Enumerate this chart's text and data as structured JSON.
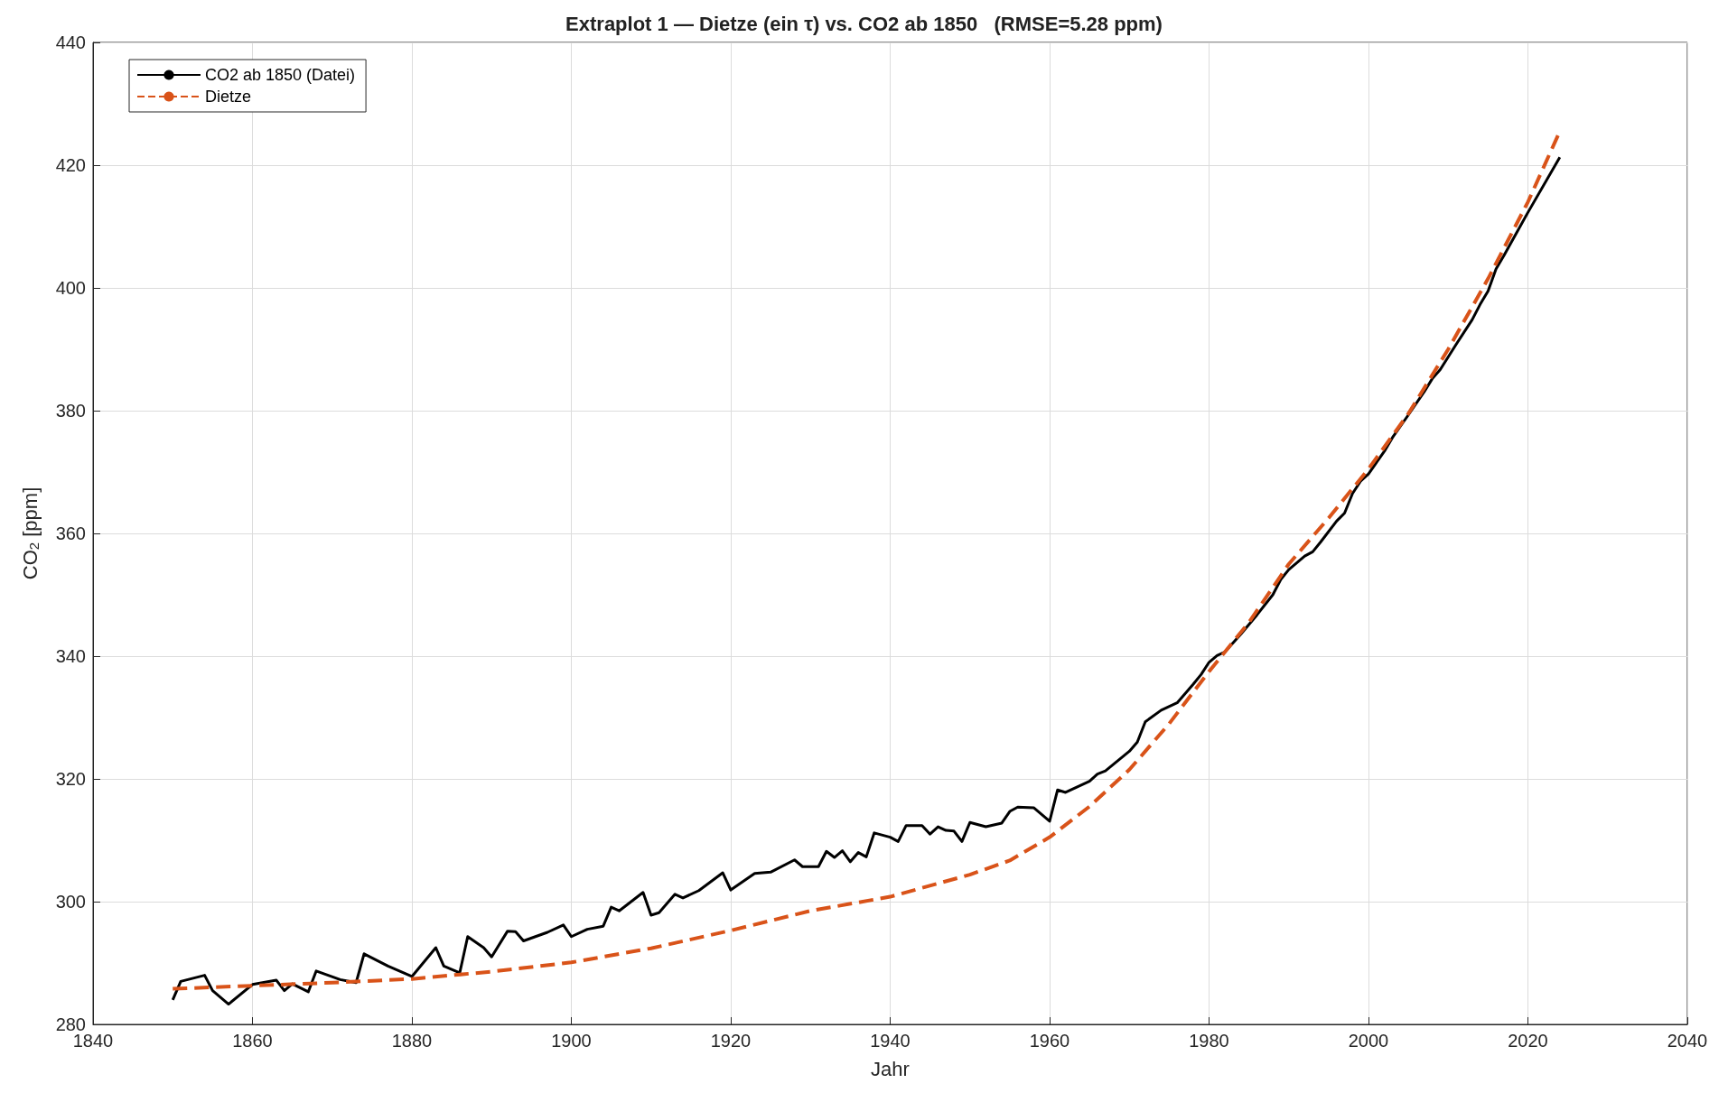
{
  "chart_data": {
    "type": "line",
    "title": "Extraplot 1 — Dietze (ein τ) vs. CO2 ab 1850   (RMSE=5.28 ppm)",
    "xlabel": "Jahr",
    "ylabel": "CO$_{2}$ [ppm]",
    "xlim": [
      1840,
      2040
    ],
    "xticks": [
      1840,
      1860,
      1880,
      1900,
      1920,
      1940,
      1960,
      1980,
      2000,
      2020,
      2040
    ],
    "ylim": [
      280,
      440
    ],
    "yticks": [
      280,
      300,
      320,
      340,
      360,
      380,
      400,
      420,
      440
    ],
    "grid": true,
    "legend": "top left",
    "marker": "none",
    "series": [
      {
        "name": "CO2 ab 1850 (Datei)",
        "color": "#000000",
        "line_style": "solid",
        "x": [
          1850,
          1851,
          1854,
          1855,
          1857,
          1860,
          1863,
          1864,
          1865,
          1867,
          1868,
          1871,
          1873,
          1874,
          1877,
          1880,
          1883,
          1884,
          1886,
          1887,
          1889,
          1890,
          1892,
          1893,
          1894,
          1897,
          1899,
          1900,
          1902,
          1904,
          1905,
          1906,
          1909,
          1910,
          1911,
          1913,
          1914,
          1916,
          1919,
          1920,
          1923,
          1925,
          1928,
          1929,
          1931,
          1932,
          1933,
          1934,
          1935,
          1936,
          1937,
          1938,
          1940,
          1941,
          1942,
          1944,
          1945,
          1946,
          1947,
          1948,
          1949,
          1950,
          1952,
          1954,
          1955,
          1956,
          1958,
          1960,
          1961,
          1962,
          1965,
          1966,
          1967,
          1970,
          1971,
          1972,
          1974,
          1976,
          1978,
          1979,
          1980,
          1981,
          1982,
          1984,
          1986,
          1988,
          1989,
          1990,
          1992,
          1993,
          1994,
          1996,
          1997,
          1998,
          1999,
          2000,
          2002,
          2003,
          2005,
          2007,
          2008,
          2009,
          2011,
          2013,
          2014,
          2015,
          2016,
          2017,
          2020,
          2024
        ],
        "values": [
          284,
          287,
          288,
          285.5,
          283.3,
          286.5,
          287.2,
          285.5,
          286.6,
          285.3,
          288.7,
          287.3,
          286.8,
          291.5,
          289.5,
          287.8,
          292.5,
          289.5,
          288.4,
          294.3,
          292.5,
          291,
          295.2,
          295.1,
          293.6,
          295,
          296.2,
          294.3,
          295.5,
          296,
          299.1,
          298.5,
          301.5,
          297.8,
          298.2,
          301.2,
          300.6,
          301.8,
          304.7,
          301.9,
          304.6,
          304.8,
          306.8,
          305.7,
          305.7,
          308.2,
          307.2,
          308.3,
          306.5,
          308,
          307.3,
          311.2,
          310.5,
          309.8,
          312.4,
          312.4,
          311,
          312.2,
          311.6,
          311.5,
          309.8,
          312.9,
          312.2,
          312.8,
          314.7,
          315.4,
          315.3,
          313.1,
          318.2,
          317.8,
          319.6,
          320.8,
          321.3,
          324.5,
          326,
          329.3,
          331.2,
          332.4,
          335.4,
          337,
          339,
          340.1,
          340.7,
          343.6,
          346.7,
          350,
          352.5,
          354.1,
          356.3,
          357,
          358.6,
          362,
          363.3,
          366.5,
          368.5,
          369.7,
          373.4,
          375.6,
          379.3,
          383.1,
          385.2,
          386.7,
          390.8,
          394.8,
          397.3,
          399.5,
          403.1,
          405.3,
          412.3,
          421.3
        ]
      },
      {
        "name": "Dietze",
        "color": "#d95319",
        "line_style": "dashed",
        "x": [
          1850,
          1860,
          1870,
          1880,
          1890,
          1900,
          1910,
          1920,
          1930,
          1940,
          1950,
          1955,
          1960,
          1965,
          1970,
          1975,
          1980,
          1985,
          1990,
          1995,
          2000,
          2005,
          2010,
          2015,
          2020,
          2024
        ],
        "values": [
          285.8,
          286.3,
          286.8,
          287.4,
          288.6,
          290.1,
          292.4,
          295.3,
          298.5,
          300.8,
          304.4,
          306.7,
          310.5,
          315.5,
          321.5,
          329,
          337.5,
          345.5,
          355,
          362.5,
          370.5,
          379.5,
          390,
          401.5,
          414,
          425.5
        ]
      }
    ]
  }
}
